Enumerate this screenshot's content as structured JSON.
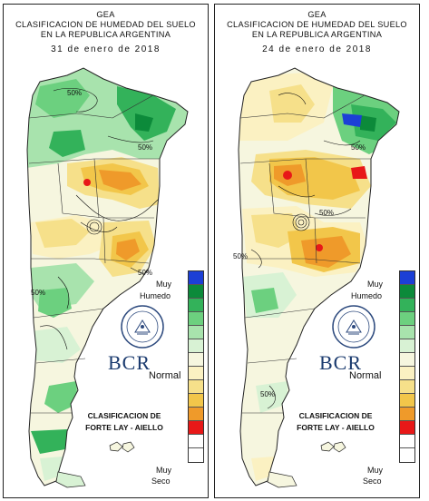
{
  "header": {
    "line1": "GEA",
    "line2": "CLASIFICACION DE HUMEDAD DEL SUELO",
    "line3": "EN LA REPUBLICA ARGENTINA"
  },
  "panels": [
    {
      "date": "31 de enero de 2018",
      "contour_labels": [
        "50%",
        "50%",
        "50%",
        "50%"
      ]
    },
    {
      "date": "24 de enero de 2018",
      "contour_labels": [
        "50%",
        "50%",
        "50%",
        "50%"
      ]
    }
  ],
  "legend": {
    "top_label_1": "Muy",
    "top_label_2": "Humedo",
    "middle_label": "Normal",
    "bottom_label_1": "Muy",
    "bottom_label_2": "Seco",
    "colors": [
      "#1c3fd6",
      "#0c8a3a",
      "#33b25a",
      "#6cd07f",
      "#a8e3ad",
      "#d8f2d4",
      "#f6f6df",
      "#fbf1c2",
      "#f6e08a",
      "#f2c64a",
      "#ef9a2a",
      "#e81818"
    ]
  },
  "logo": {
    "name": "BCR"
  },
  "credit": {
    "line1": "CLASIFICACION DE",
    "line2": "FORTE LAY - AIELLO"
  },
  "map_colors": {
    "very_wet": "#1c3fd6",
    "wet_dark": "#0c8a3a",
    "wet": "#33b25a",
    "wet_light": "#6cd07f",
    "pale_green": "#a8e3ad",
    "normal": "#f6f6df",
    "dry_light": "#fbf1c2",
    "dry": "#f6e08a",
    "dry_mid": "#f2c64a",
    "dry_orange": "#ef9a2a",
    "very_dry": "#e81818"
  }
}
